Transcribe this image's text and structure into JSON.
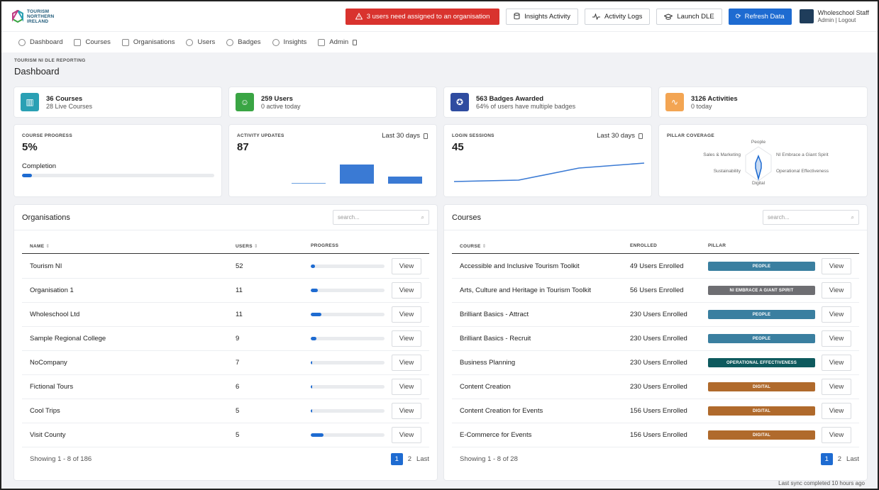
{
  "brand": {
    "logo_line1": "TOURISM",
    "logo_line2": "NORTHERN",
    "logo_line3": "IRELAND"
  },
  "topbar": {
    "alert_label": "3 users need assigned to an organisation",
    "insights_label": "Insights Activity",
    "logs_label": "Activity Logs",
    "launch_label": "Launch DLE",
    "refresh_label": "Refresh Data",
    "user_name": "Wholeschool Staff",
    "admin_link": "Admin",
    "separator": "|",
    "logout_link": "Logout"
  },
  "nav": {
    "dashboard": "Dashboard",
    "courses": "Courses",
    "organisations": "Organisations",
    "users": "Users",
    "badges": "Badges",
    "insights": "Insights",
    "admin": "Admin"
  },
  "page": {
    "eyebrow": "TOURISM NI DLE REPORTING",
    "title": "Dashboard"
  },
  "stats": [
    {
      "main": "36 Courses",
      "sub": "28 Live Courses",
      "color": "#2aa0b4"
    },
    {
      "main": "259 Users",
      "sub": "0 active today",
      "color": "#3aa544"
    },
    {
      "main": "563 Badges Awarded",
      "sub": "64% of users have multiple badges",
      "color": "#2f4ca0"
    },
    {
      "main": "3126 Activities",
      "sub": "0 today",
      "color": "#f3a553"
    }
  ],
  "course_progress": {
    "label": "COURSE PROGRESS",
    "value": "5%",
    "completion_label": "Completion",
    "fraction": 0.05
  },
  "activity_updates": {
    "label": "ACTIVITY UPDATES",
    "value": "87",
    "range": "Last 30 days"
  },
  "login_sessions": {
    "label": "LOGIN SESSIONS",
    "value": "45",
    "range": "Last 30 days"
  },
  "pillar_coverage": {
    "label": "PILLAR COVERAGE",
    "axes": [
      "People",
      "NI Embrace a Giant Spirit",
      "Operational Effectiveness",
      "Digital",
      "Sustainability",
      "Sales & Marketing"
    ]
  },
  "organisations": {
    "title": "Organisations",
    "search_placeholder": "search...",
    "columns": [
      "NAME",
      "USERS",
      "PROGRESS"
    ],
    "rows": [
      {
        "name": "Tourism NI",
        "users": "52",
        "progress": 0.06
      },
      {
        "name": "Organisation 1",
        "users": "11",
        "progress": 0.1
      },
      {
        "name": "Wholeschool Ltd",
        "users": "11",
        "progress": 0.14
      },
      {
        "name": "Sample Regional College",
        "users": "9",
        "progress": 0.08
      },
      {
        "name": "NoCompany",
        "users": "7",
        "progress": 0.02
      },
      {
        "name": "Fictional Tours",
        "users": "6",
        "progress": 0.02
      },
      {
        "name": "Cool Trips",
        "users": "5",
        "progress": 0.01
      },
      {
        "name": "Visit County",
        "users": "5",
        "progress": 0.17
      }
    ],
    "view_label": "View",
    "footer": "Showing 1 - 8 of 186",
    "pages": [
      "1",
      "2",
      "Last"
    ]
  },
  "courses": {
    "title": "Courses",
    "search_placeholder": "search...",
    "columns": [
      "COURSE",
      "ENROLLED",
      "PILLAR"
    ],
    "rows": [
      {
        "name": "Accessible and Inclusive Tourism Toolkit",
        "enrolled": "49 Users Enrolled",
        "pillar": "PEOPLE",
        "color": "#3a7fa0"
      },
      {
        "name": "Arts, Culture and Heritage in Tourism Toolkit",
        "enrolled": "56 Users Enrolled",
        "pillar": "NI EMBRACE A GIANT SPIRIT",
        "color": "#6e6e72"
      },
      {
        "name": "Brilliant Basics - Attract",
        "enrolled": "230 Users Enrolled",
        "pillar": "PEOPLE",
        "color": "#3a7fa0"
      },
      {
        "name": "Brilliant Basics - Recruit",
        "enrolled": "230 Users Enrolled",
        "pillar": "PEOPLE",
        "color": "#3a7fa0"
      },
      {
        "name": "Business Planning",
        "enrolled": "230 Users Enrolled",
        "pillar": "OPERATIONAL EFFECTIVENESS",
        "color": "#0e5a5e"
      },
      {
        "name": "Content Creation",
        "enrolled": "230 Users Enrolled",
        "pillar": "DIGITAL",
        "color": "#b06a2c"
      },
      {
        "name": "Content Creation for Events",
        "enrolled": "156 Users Enrolled",
        "pillar": "DIGITAL",
        "color": "#b06a2c"
      },
      {
        "name": "E-Commerce for Events",
        "enrolled": "156 Users Enrolled",
        "pillar": "DIGITAL",
        "color": "#b06a2c"
      }
    ],
    "view_label": "View",
    "footer": "Showing 1 - 8 of 28",
    "pages": [
      "1",
      "2",
      "Last"
    ]
  },
  "sync": "Last sync completed 10 hours ago",
  "colors": {
    "accent": "#1e6bd1",
    "alert": "#d9332e"
  }
}
